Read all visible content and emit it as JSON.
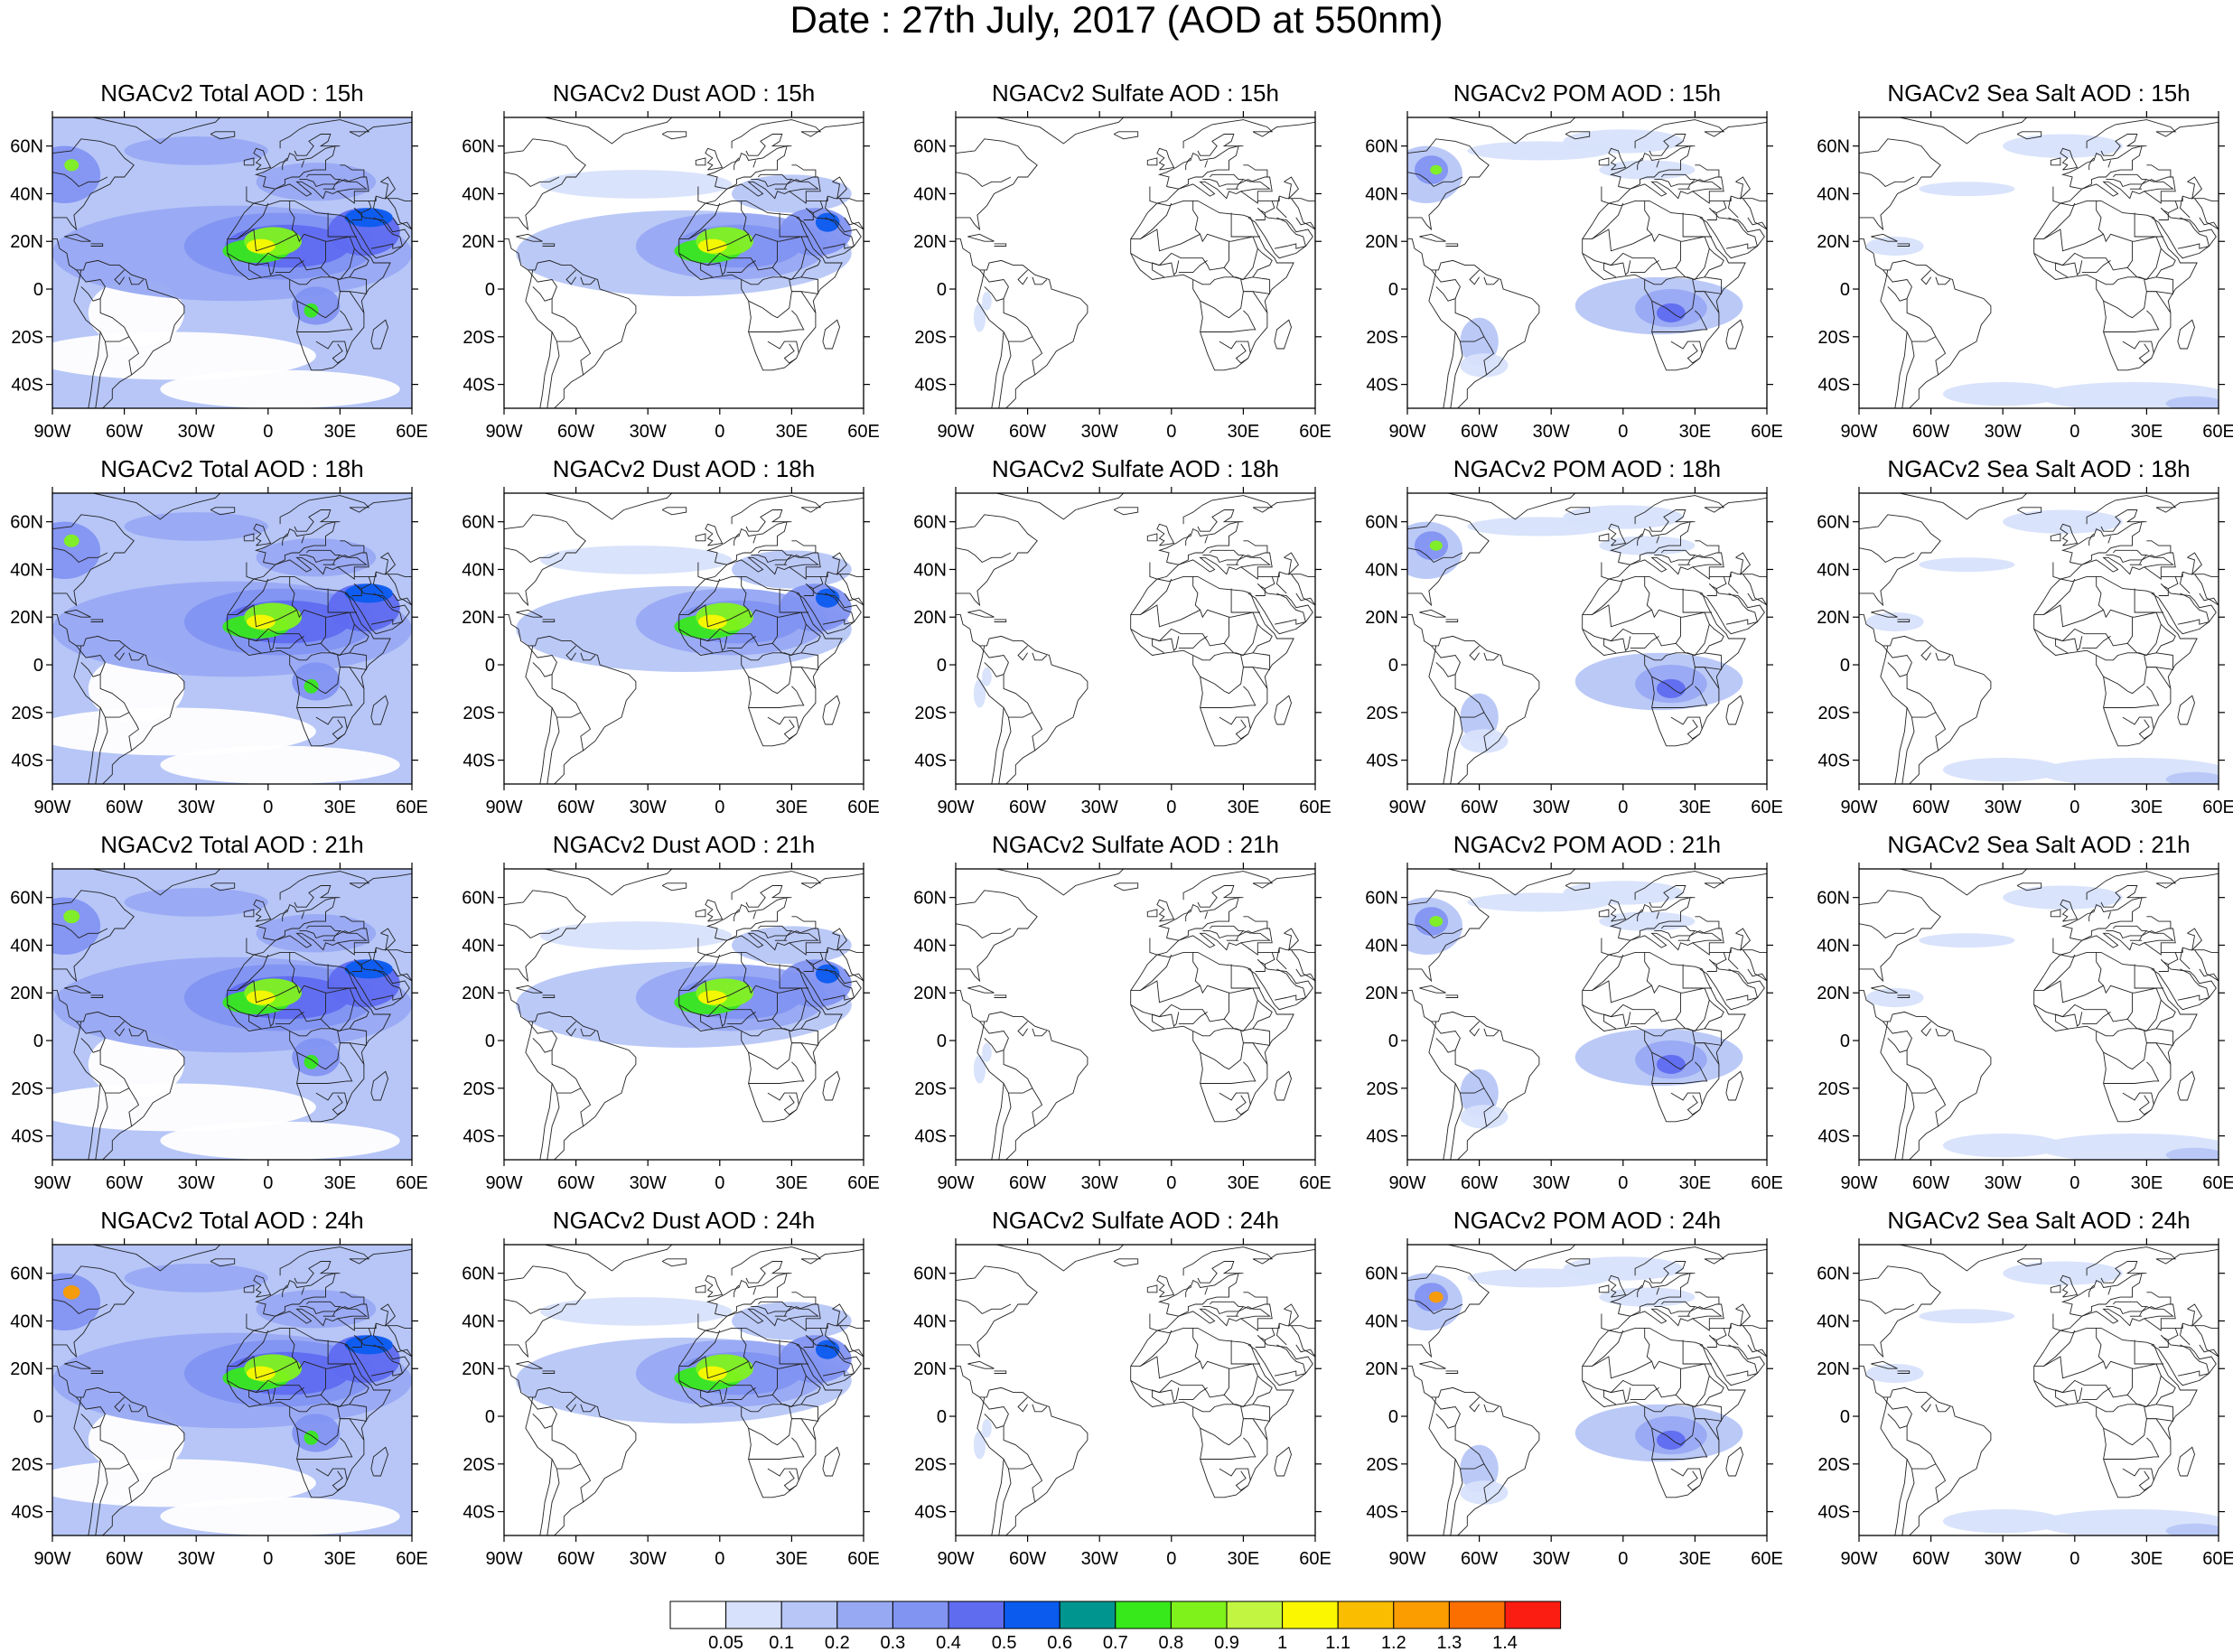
{
  "title": "Date : 27th July, 2017 (AOD at 550nm)",
  "hours": [
    "15h",
    "18h",
    "21h",
    "24h"
  ],
  "variables": [
    {
      "key": "total",
      "label": "NGACv2 Total AOD"
    },
    {
      "key": "dust",
      "label": "NGACv2 Dust AOD"
    },
    {
      "key": "sulfate",
      "label": "NGACv2 Sulfate AOD"
    },
    {
      "key": "pom",
      "label": "NGACv2 POM AOD"
    },
    {
      "key": "seasalt",
      "label": "NGACv2 Sea Salt AOD"
    }
  ],
  "panel_titles": [
    [
      "NGACv2 Total AOD : 15h",
      "NGACv2 Dust AOD : 15h",
      "NGACv2 Sulfate AOD : 15h",
      "NGACv2 POM AOD : 15h",
      "NGACv2 Sea Salt AOD : 15h"
    ],
    [
      "NGACv2 Total AOD : 18h",
      "NGACv2 Dust AOD : 18h",
      "NGACv2 Sulfate AOD : 18h",
      "NGACv2 POM AOD : 18h",
      "NGACv2 Sea Salt AOD : 18h"
    ],
    [
      "NGACv2 Total AOD : 21h",
      "NGACv2 Dust AOD : 21h",
      "NGACv2 Sulfate AOD : 21h",
      "NGACv2 POM AOD : 21h",
      "NGACv2 Sea Salt AOD : 21h"
    ],
    [
      "NGACv2 Total AOD : 24h",
      "NGACv2 Dust AOD : 24h",
      "NGACv2 Sulfate AOD : 24h",
      "NGACv2 POM AOD : 24h",
      "NGACv2 Sea Salt  AOD : 24h"
    ]
  ],
  "map": {
    "lon_range": [
      -90,
      60
    ],
    "lat_range": [
      -50,
      72
    ],
    "lon_ticks": [
      {
        "value": -90,
        "label": "90W"
      },
      {
        "value": -60,
        "label": "60W"
      },
      {
        "value": -30,
        "label": "30W"
      },
      {
        "value": 0,
        "label": "0"
      },
      {
        "value": 30,
        "label": "30E"
      },
      {
        "value": 60,
        "label": "60E"
      }
    ],
    "lat_ticks": [
      {
        "value": 60,
        "label": "60N"
      },
      {
        "value": 40,
        "label": "40N"
      },
      {
        "value": 20,
        "label": "20N"
      },
      {
        "value": 0,
        "label": "0"
      },
      {
        "value": -20,
        "label": "20S"
      },
      {
        "value": -40,
        "label": "40S"
      }
    ]
  },
  "colorbar": {
    "levels": [
      "0.05",
      "0.1",
      "0.2",
      "0.3",
      "0.4",
      "0.5",
      "0.6",
      "0.7",
      "0.8",
      "0.9",
      "1",
      "1.1",
      "1.2",
      "1.3",
      "1.4"
    ],
    "colors": [
      "#ffffff",
      "#d7e1fb",
      "#b7c6f7",
      "#98a9f3",
      "#8294f2",
      "#5f6cf0",
      "#0b5bef",
      "#00958f",
      "#37e81b",
      "#7ff21c",
      "#c1f541",
      "#faf700",
      "#fbbd00",
      "#fb9c00",
      "#fb6f00",
      "#fb1d12"
    ]
  }
}
